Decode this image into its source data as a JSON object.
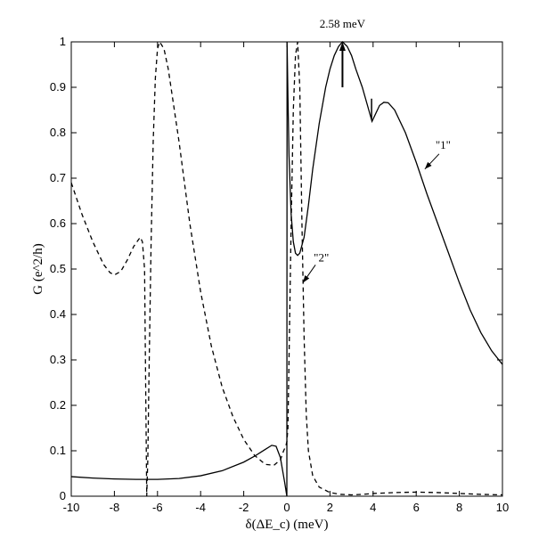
{
  "chart_data": {
    "type": "line",
    "title": "",
    "xlabel": "δ(ΔE_c) (meV)",
    "ylabel": "G (e^2/h)",
    "xlim": [
      -10,
      10
    ],
    "ylim": [
      0,
      1
    ],
    "xticks": [
      -10,
      -8,
      -6,
      -4,
      -2,
      0,
      2,
      4,
      6,
      8,
      10
    ],
    "yticks": [
      0,
      0.1,
      0.2,
      0.3,
      0.4,
      0.5,
      0.6,
      0.7,
      0.8,
      0.9,
      1
    ],
    "grid": false,
    "series": [
      {
        "name": "\"1\"",
        "style": "solid",
        "color": "#000000",
        "x": [
          -10,
          -9,
          -8,
          -7,
          -6,
          -5,
          -4,
          -3,
          -2,
          -1.5,
          -1,
          -0.7,
          -0.5,
          -0.3,
          -0.1,
          0,
          0.01,
          0.05,
          0.1,
          0.2,
          0.3,
          0.4,
          0.5,
          0.6,
          0.8,
          1.0,
          1.2,
          1.5,
          1.8,
          2.0,
          2.2,
          2.4,
          2.58,
          2.8,
          3.0,
          3.2,
          3.5,
          3.8,
          3.95,
          4.1,
          4.3,
          4.5,
          4.7,
          5.0,
          5.5,
          6.0,
          6.5,
          7.0,
          7.5,
          8.0,
          8.5,
          9.0,
          9.5,
          10
        ],
        "y": [
          0.043,
          0.04,
          0.038,
          0.037,
          0.037,
          0.039,
          0.045,
          0.056,
          0.075,
          0.088,
          0.103,
          0.112,
          0.11,
          0.085,
          0.03,
          0.0,
          1.0,
          0.88,
          0.75,
          0.62,
          0.56,
          0.535,
          0.53,
          0.535,
          0.57,
          0.64,
          0.72,
          0.82,
          0.9,
          0.94,
          0.97,
          0.99,
          1.0,
          0.99,
          0.97,
          0.94,
          0.9,
          0.85,
          0.825,
          0.84,
          0.86,
          0.867,
          0.866,
          0.85,
          0.8,
          0.735,
          0.665,
          0.6,
          0.535,
          0.47,
          0.41,
          0.36,
          0.32,
          0.29
        ]
      },
      {
        "name": "\"2\"",
        "style": "dashed",
        "color": "#000000",
        "x": [
          -10,
          -9.5,
          -9,
          -8.5,
          -8.2,
          -8,
          -7.7,
          -7.4,
          -7.1,
          -6.8,
          -6.7,
          -6.6,
          -6.5,
          -6.45,
          -6.4,
          -6.3,
          -6.2,
          -6.1,
          -6.0,
          -5.9,
          -5.7,
          -5.5,
          -5.0,
          -4.5,
          -4.0,
          -3.5,
          -3.0,
          -2.5,
          -2.0,
          -1.5,
          -1.0,
          -0.6,
          -0.3,
          -0.15,
          -0.1,
          -0.05,
          0,
          0.05,
          0.1,
          0.2,
          0.3,
          0.4,
          0.5,
          0.6,
          0.7,
          0.8,
          0.9,
          1.0,
          1.2,
          1.5,
          2.0,
          2.5,
          3.0,
          3.5,
          4.0,
          5.0,
          6.0,
          7.0,
          8.0,
          9.0,
          10
        ],
        "y": [
          0.69,
          0.62,
          0.56,
          0.51,
          0.492,
          0.487,
          0.495,
          0.52,
          0.55,
          0.57,
          0.56,
          0.5,
          0.0,
          0.08,
          0.25,
          0.55,
          0.78,
          0.92,
          0.985,
          1.0,
          0.985,
          0.94,
          0.78,
          0.6,
          0.45,
          0.33,
          0.24,
          0.175,
          0.125,
          0.09,
          0.07,
          0.068,
          0.08,
          0.1,
          0.105,
          0.11,
          0.12,
          0.15,
          0.3,
          0.6,
          0.85,
          0.97,
          1.0,
          0.9,
          0.6,
          0.35,
          0.18,
          0.1,
          0.045,
          0.02,
          0.008,
          0.004,
          0.003,
          0.004,
          0.006,
          0.008,
          0.009,
          0.008,
          0.006,
          0.004,
          0.003
        ]
      }
    ],
    "annotations": [
      {
        "text": "2.58 meV",
        "arrow_at_x": 2.58,
        "arrow_from_y": 0.9,
        "arrow_to_y": 1.0
      },
      {
        "text": "\"1\"",
        "series": "\"1\"",
        "at_x": 6.4,
        "at_y": 0.72
      },
      {
        "text": "\"2\"",
        "series": "\"2\"",
        "at_x": 0.75,
        "at_y": 0.47
      }
    ]
  }
}
